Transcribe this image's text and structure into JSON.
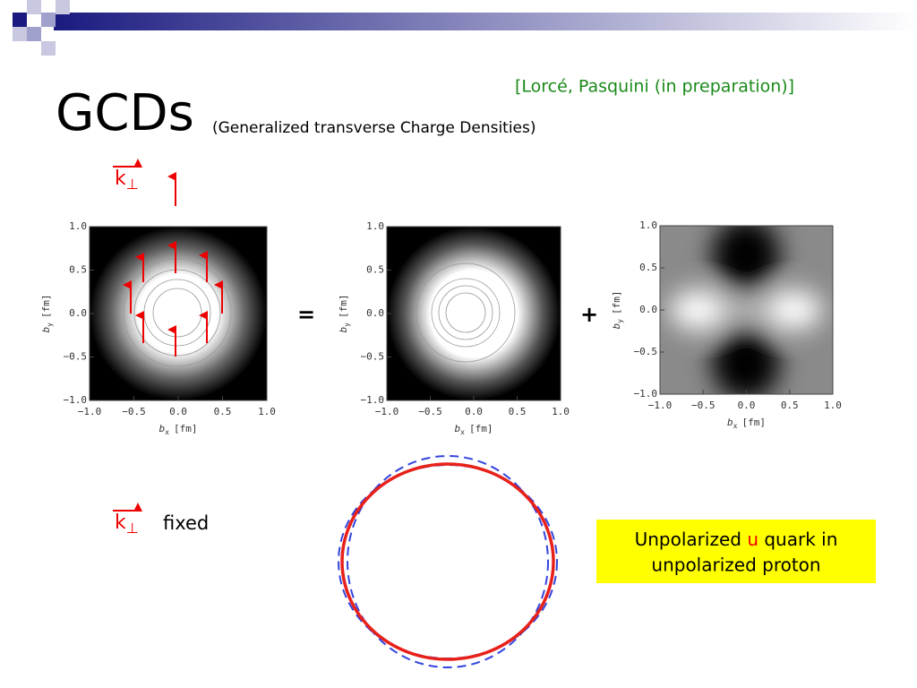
{
  "header": {
    "title": "GCDs",
    "subtitle": "(Generalized transverse Charge Densities)",
    "reference": "[Lorcé, Pasquini (in preparation)]"
  },
  "labels": {
    "k_symbol": "k",
    "k_sub": "⊥",
    "fixed": "fixed",
    "equals": "=",
    "plus": "+"
  },
  "plots": [
    {
      "xticks": [
        "−1.0",
        "−0.5",
        "0.0",
        "0.5",
        "1.0"
      ],
      "yticks": [
        "1.0",
        "0.5",
        "0.0",
        "−0.5",
        "−1.0"
      ],
      "xlabel": {
        "symbol": "b",
        "sub": "x",
        "unit": "[fm]"
      },
      "ylabel": {
        "symbol": "b",
        "sub": "y",
        "unit": "[fm]"
      }
    },
    {
      "xticks": [
        "−1.0",
        "−0.5",
        "0.0",
        "0.5",
        "1.0"
      ],
      "yticks": [
        "1.0",
        "0.5",
        "0.0",
        "−0.5",
        "−1.0"
      ],
      "xlabel": {
        "symbol": "b",
        "sub": "x",
        "unit": "[fm]"
      },
      "ylabel": {
        "symbol": "b",
        "sub": "y",
        "unit": "[fm]"
      }
    },
    {
      "xticks": [
        "−1.0",
        "−0.5",
        "0.0",
        "0.5",
        "1.0"
      ],
      "yticks": [
        "1.0",
        "0.5",
        "0.0",
        "−0.5",
        "−1.0"
      ],
      "xlabel": {
        "symbol": "b",
        "sub": "x",
        "unit": "[fm]"
      },
      "ylabel": {
        "symbol": "b",
        "sub": "y",
        "unit": "[fm]"
      }
    }
  ],
  "note": {
    "before": "Unpolarized ",
    "highlight": "u",
    "after": " quark in",
    "line2": "unpolarized proton"
  }
}
